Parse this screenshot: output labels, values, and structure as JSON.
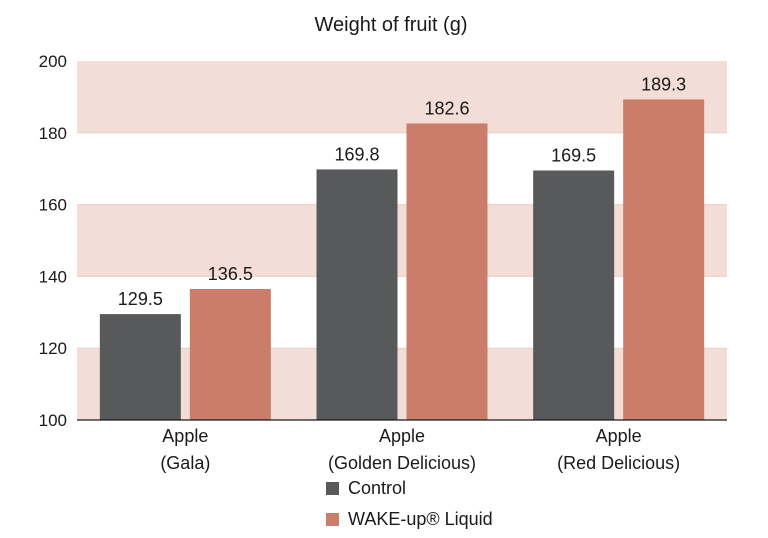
{
  "chart_data": {
    "type": "bar",
    "title": "Weight of fruit (g)",
    "xlabel": "",
    "ylabel": "",
    "categories": [
      [
        "Apple",
        "(Gala)"
      ],
      [
        "Apple",
        "(Golden Delicious)"
      ],
      [
        "Apple",
        "(Red Delicious)"
      ]
    ],
    "series": [
      {
        "name": "Control",
        "color": "#58595b",
        "values": [
          129.5,
          169.8,
          169.5
        ],
        "labels": [
          "129.5",
          "169.8",
          "169.5"
        ]
      },
      {
        "name": "WAKE-up® Liquid",
        "color": "#c97d6a",
        "values": [
          136.5,
          182.6,
          189.3
        ],
        "labels": [
          "136.5",
          "182.6",
          "189.3"
        ]
      }
    ],
    "ylim": [
      100,
      200
    ],
    "yticks": [
      100,
      120,
      140,
      160,
      180,
      200
    ],
    "band_color": "#f2ddd7",
    "legend_position": "bottom",
    "grid": false
  }
}
